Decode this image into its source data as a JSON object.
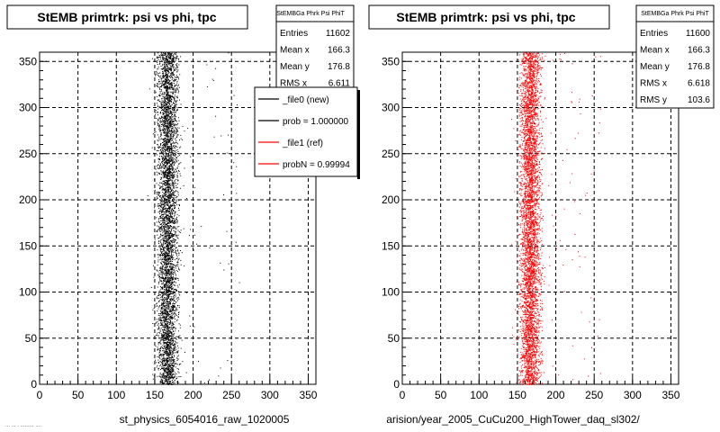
{
  "chart_data": [
    {
      "type": "scatter",
      "title": "StEMB primtrk: psi vs phi, tpc",
      "xlabel": "st_physics_6054016_raw_1020005",
      "xlim": [
        0,
        360
      ],
      "ylim": [
        0,
        360
      ],
      "xticks": [
        0,
        50,
        100,
        150,
        200,
        250,
        300,
        350
      ],
      "yticks": [
        0,
        50,
        100,
        150,
        200,
        250,
        300,
        350
      ],
      "grid": true,
      "marker_color": "#000000",
      "band": {
        "center": 166.3,
        "core_width": 6.6,
        "extent": [
          152,
          182
        ]
      },
      "stats": {
        "title": "StEMBGa Phrk Psi PhiT",
        "rows": [
          {
            "label": "Entries",
            "value": "11602"
          },
          {
            "label": "Mean x",
            "value": "166.3"
          },
          {
            "label": "Mean y",
            "value": "176.8"
          },
          {
            "label": "RMS x",
            "value": "6.611"
          }
        ]
      },
      "legend": {
        "entries": [
          {
            "label": "_file0 (new)",
            "color": "#000000"
          },
          {
            "label": "prob = 1.000000",
            "color": "#000000"
          },
          {
            "label": "_file1 (ref)",
            "color": "#ff0000"
          },
          {
            "label": "probN = 0.99994",
            "color": "#ff0000"
          }
        ]
      }
    },
    {
      "type": "scatter",
      "title": "StEMB primtrk: psi vs phi, tpc",
      "xlabel": "arision/year_2005_CuCu200_HighTower_daq_sl302/",
      "xlim": [
        0,
        360
      ],
      "ylim": [
        0,
        360
      ],
      "xticks": [
        0,
        50,
        100,
        150,
        200,
        250,
        300,
        350
      ],
      "yticks": [
        0,
        50,
        100,
        150,
        200,
        250,
        300,
        350
      ],
      "grid": true,
      "marker_color": "#ff0000",
      "band": {
        "center": 166.3,
        "core_width": 6.6,
        "extent": [
          152,
          182
        ]
      },
      "stats": {
        "title": "StEMBGa Phrk Psi PhiT",
        "rows": [
          {
            "label": "Entries",
            "value": "11600"
          },
          {
            "label": "Mean x",
            "value": "166.3"
          },
          {
            "label": "Mean y",
            "value": "176.8"
          },
          {
            "label": "RMS x",
            "value": "6.618"
          },
          {
            "label": "RMS y",
            "value": "103.6"
          }
        ]
      }
    }
  ],
  "footer": "... ... . ......... ...."
}
